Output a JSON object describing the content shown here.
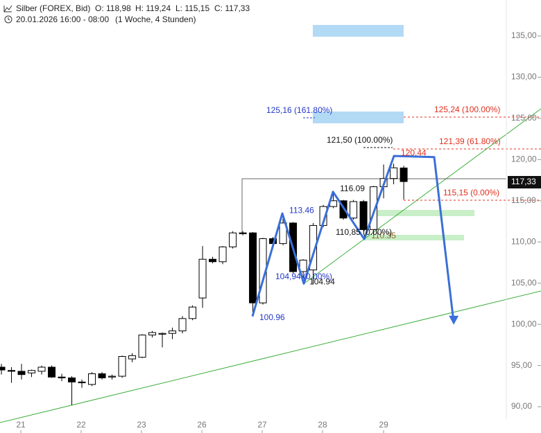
{
  "header": {
    "instrument": "Silber (FOREX, Bid)",
    "open": "O: 118,98",
    "high": "H: 119,24",
    "low": "L: 115,15",
    "close": "C: 117,33",
    "period": "20.01.2026 16:00 - 08:00",
    "interval": "(1 Woche, 4 Stunden)"
  },
  "last_price_label": "117,33",
  "chart_data": {
    "type": "candlestick",
    "x": [
      0,
      1,
      2,
      3,
      4,
      5,
      6,
      7,
      8,
      9,
      10,
      11,
      12,
      13,
      14,
      15,
      16,
      17,
      18,
      19,
      20,
      21,
      22,
      23,
      24,
      25,
      26,
      27,
      28,
      29,
      30,
      31,
      32,
      33,
      34,
      35,
      36,
      37,
      38,
      39,
      40
    ],
    "open": [
      94.8,
      94.4,
      94.3,
      94.1,
      94.3,
      94.8,
      93.6,
      93.5,
      93.0,
      92.7,
      94.0,
      93.6,
      93.7,
      95.8,
      96.0,
      98.7,
      98.8,
      98.9,
      99.2,
      100.7,
      103.2,
      107.9,
      107.6,
      109.4,
      111.1,
      111.1,
      102.6,
      110.4,
      109.8,
      112.3,
      106.4,
      106.6,
      112.0,
      114.3,
      115.0,
      112.9,
      114.9,
      111.5,
      116.7,
      117.7,
      118.98
    ],
    "high": [
      95.2,
      94.8,
      95.2,
      94.5,
      95.0,
      95.0,
      94.0,
      93.7,
      93.3,
      94.2,
      94.2,
      93.9,
      96.2,
      96.5,
      98.8,
      99.2,
      99.0,
      99.6,
      101.0,
      102.3,
      109.5,
      108.2,
      109.5,
      111.3,
      111.3,
      111.2,
      110.5,
      110.6,
      113.3,
      112.4,
      107.9,
      112.3,
      114.5,
      115.8,
      115.1,
      115.1,
      115.1,
      116.8,
      119.4,
      119.5,
      119.24
    ],
    "low": [
      93.9,
      92.9,
      93.3,
      93.6,
      93.9,
      93.5,
      93.1,
      90.2,
      92.3,
      92.5,
      93.3,
      93.3,
      93.5,
      95.4,
      95.9,
      98.4,
      97.2,
      98.2,
      98.9,
      100.5,
      102.0,
      107.4,
      107.3,
      109.2,
      110.8,
      101.4,
      102.4,
      109.6,
      109.6,
      106.2,
      104.9,
      104.9,
      111.8,
      114.1,
      112.7,
      112.7,
      111.3,
      110.8,
      115.3,
      117.0,
      115.15
    ],
    "close": [
      94.46,
      94.3,
      93.9,
      94.4,
      94.8,
      93.6,
      93.5,
      93.0,
      92.9,
      94.0,
      93.5,
      93.7,
      96.1,
      96.2,
      98.7,
      99.0,
      98.9,
      99.2,
      100.7,
      102.1,
      107.9,
      107.6,
      109.4,
      111.1,
      111.0,
      102.6,
      110.4,
      109.8,
      112.3,
      106.4,
      107.8,
      112.0,
      114.3,
      115.0,
      112.9,
      114.9,
      111.5,
      116.7,
      117.7,
      119.0,
      117.33
    ],
    "up_color": "#ffffff",
    "down_color": "#000000",
    "xlim": [
      -0.14,
      50.2
    ],
    "ylim": [
      88.49,
      139.37
    ],
    "xticks": [
      {
        "value": 1.93,
        "label": "21"
      },
      {
        "value": 7.93,
        "label": "22"
      },
      {
        "value": 13.93,
        "label": "23"
      },
      {
        "value": 19.93,
        "label": "26"
      },
      {
        "value": 25.93,
        "label": "27"
      },
      {
        "value": 31.93,
        "label": "28"
      },
      {
        "value": 38.0,
        "label": "29"
      }
    ],
    "yticks": [
      {
        "value": 90,
        "label": "90,00"
      },
      {
        "value": 95,
        "label": "95,00"
      },
      {
        "value": 100,
        "label": "100,00"
      },
      {
        "value": 105,
        "label": "105,00"
      },
      {
        "value": 110,
        "label": "110,00"
      },
      {
        "value": 115,
        "label": "115,00"
      },
      {
        "value": 120,
        "label": "120,00"
      },
      {
        "value": 125,
        "label": "125,00"
      },
      {
        "value": 130,
        "label": "130,00"
      },
      {
        "value": 135,
        "label": "135,00"
      }
    ],
    "zigzag": {
      "color": "#3a6fd8",
      "x": [
        24.96,
        27.93,
        30.07,
        32.97,
        36.07,
        39.03,
        43.03,
        44.97
      ],
      "values": [
        100.96,
        113.46,
        104.94,
        116.09,
        110.35,
        120.44,
        120.3,
        100.2
      ]
    },
    "annotations": [
      {
        "text": "125,16 (161.80%)",
        "color": "#2238c8"
      },
      {
        "text": "125,24 (100.00%)",
        "color": "#e0301e"
      },
      {
        "text": "121,50 (100.00%)",
        "color": "#111111"
      },
      {
        "text": "121,39 (61.80%)",
        "color": "#e0301e"
      },
      {
        "text": "115,15 (0.00%)",
        "color": "#e0301e"
      },
      {
        "text": "110,85 (0.00%)",
        "color": "#111111"
      },
      {
        "text": "104,94 (0.00%)",
        "color": "#2238c8"
      }
    ]
  }
}
